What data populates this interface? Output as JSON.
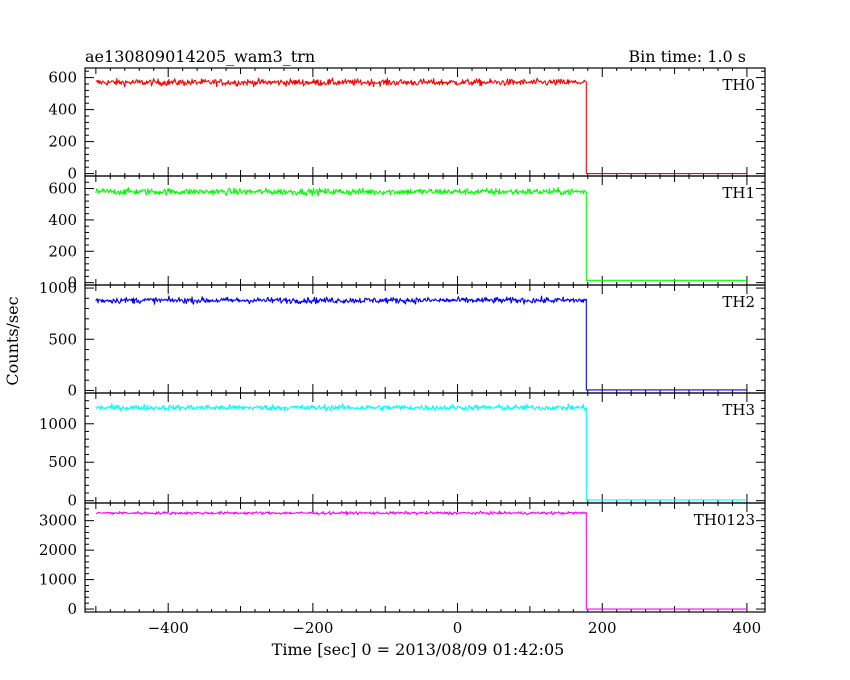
{
  "header": {
    "title": "ae130809014205_wam3_trn",
    "bin_time": "Bin time: 1.0 s"
  },
  "chart_data": {
    "type": "line",
    "xlabel": "Time [sec] 0 = 2013/08/09 01:42:05",
    "ylabel": "Counts/sec",
    "xlim": [
      -515,
      425
    ],
    "x_ticks": [
      -400,
      -200,
      0,
      200,
      400
    ],
    "grid": false,
    "drop_time": 178,
    "data_start": -500,
    "data_end": 400,
    "panels": [
      {
        "name": "TH0",
        "color": "#ff0000",
        "ylim": [
          -15,
          660
        ],
        "y_ticks": [
          0,
          200,
          400,
          600
        ],
        "mean_before": 570,
        "noise": 20,
        "after_value": 0
      },
      {
        "name": "TH1",
        "color": "#00ff00",
        "ylim": [
          -15,
          680
        ],
        "y_ticks": [
          0,
          200,
          400,
          600
        ],
        "mean_before": 580,
        "noise": 20,
        "after_value": 15
      },
      {
        "name": "TH2",
        "color": "#0000ff",
        "ylim": [
          -25,
          1030
        ],
        "y_ticks": [
          0,
          500,
          1000
        ],
        "mean_before": 880,
        "noise": 28,
        "after_value": 5
      },
      {
        "name": "TH3",
        "color": "#00ffff",
        "ylim": [
          -30,
          1400
        ],
        "y_ticks": [
          0,
          500,
          1000
        ],
        "mean_before": 1210,
        "noise": 35,
        "after_value": 10
      },
      {
        "name": "TH0123",
        "color": "#ff00ff",
        "ylim": [
          -100,
          3600
        ],
        "y_ticks": [
          0,
          1000,
          2000,
          3000
        ],
        "mean_before": 3260,
        "noise": 45,
        "after_value": 0
      }
    ]
  }
}
